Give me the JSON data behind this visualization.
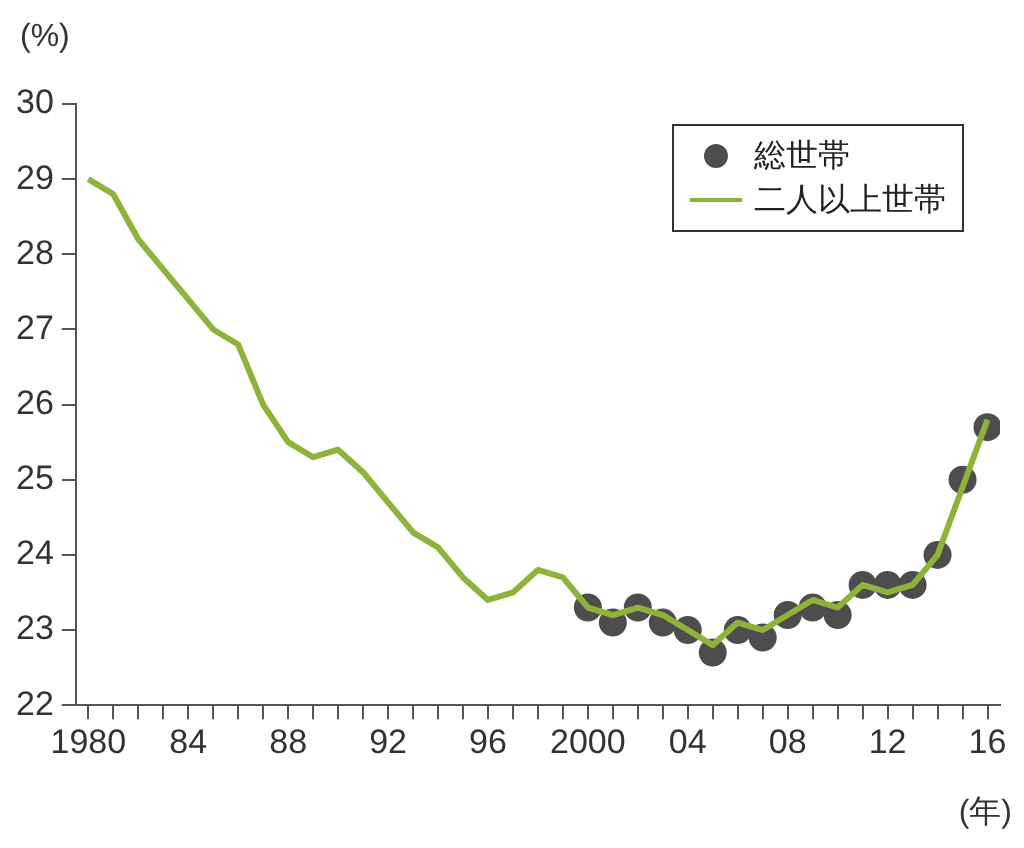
{
  "chart_data": {
    "type": "line",
    "ylabel": "(%)",
    "xlabel": "(年)",
    "xlim": [
      1979.5,
      2016.5
    ],
    "xticks": [
      {
        "value": 1980,
        "label": "1980"
      },
      {
        "value": 1981,
        "label": null
      },
      {
        "value": 1982,
        "label": null
      },
      {
        "value": 1983,
        "label": null
      },
      {
        "value": 1984,
        "label": "84"
      },
      {
        "value": 1985,
        "label": null
      },
      {
        "value": 1986,
        "label": null
      },
      {
        "value": 1987,
        "label": null
      },
      {
        "value": 1988,
        "label": "88"
      },
      {
        "value": 1989,
        "label": null
      },
      {
        "value": 1990,
        "label": null
      },
      {
        "value": 1991,
        "label": null
      },
      {
        "value": 1992,
        "label": "92"
      },
      {
        "value": 1993,
        "label": null
      },
      {
        "value": 1994,
        "label": null
      },
      {
        "value": 1995,
        "label": null
      },
      {
        "value": 1996,
        "label": "96"
      },
      {
        "value": 1997,
        "label": null
      },
      {
        "value": 1998,
        "label": null
      },
      {
        "value": 1999,
        "label": null
      },
      {
        "value": 2000,
        "label": "2000"
      },
      {
        "value": 2001,
        "label": null
      },
      {
        "value": 2002,
        "label": null
      },
      {
        "value": 2003,
        "label": null
      },
      {
        "value": 2004,
        "label": "04"
      },
      {
        "value": 2005,
        "label": null
      },
      {
        "value": 2006,
        "label": null
      },
      {
        "value": 2007,
        "label": null
      },
      {
        "value": 2008,
        "label": "08"
      },
      {
        "value": 2009,
        "label": null
      },
      {
        "value": 2010,
        "label": null
      },
      {
        "value": 2011,
        "label": null
      },
      {
        "value": 2012,
        "label": "12"
      },
      {
        "value": 2013,
        "label": null
      },
      {
        "value": 2014,
        "label": null
      },
      {
        "value": 2015,
        "label": null
      },
      {
        "value": 2016,
        "label": "16"
      }
    ],
    "ylim": [
      22,
      30
    ],
    "yticks": [
      22,
      23,
      24,
      25,
      26,
      27,
      28,
      29,
      30
    ],
    "grid": false,
    "legend": "top right",
    "series": [
      {
        "name": "総世帯",
        "type": "scatter",
        "color": "#4d4d4d",
        "marker": "circle",
        "x": [
          2000,
          2001,
          2002,
          2003,
          2004,
          2005,
          2006,
          2007,
          2008,
          2009,
          2010,
          2011,
          2012,
          2013,
          2014,
          2015,
          2016
        ],
        "values": [
          23.3,
          23.1,
          23.3,
          23.1,
          23.0,
          22.7,
          23.0,
          22.9,
          23.2,
          23.3,
          23.2,
          23.6,
          23.6,
          23.6,
          24.0,
          25.0,
          25.7
        ]
      },
      {
        "name": "二人以上世帯",
        "color": "#8db33a",
        "marker": "none",
        "x": [
          1980,
          1981,
          1982,
          1983,
          1984,
          1985,
          1986,
          1987,
          1988,
          1989,
          1990,
          1991,
          1992,
          1993,
          1994,
          1995,
          1996,
          1997,
          1998,
          1999,
          2000,
          2001,
          2002,
          2003,
          2004,
          2005,
          2006,
          2007,
          2008,
          2009,
          2010,
          2011,
          2012,
          2013,
          2014,
          2015,
          2016
        ],
        "values": [
          29.0,
          28.8,
          28.2,
          27.8,
          27.4,
          27.0,
          26.8,
          26.0,
          25.5,
          25.3,
          25.4,
          25.1,
          24.7,
          24.3,
          24.1,
          23.7,
          23.4,
          23.5,
          23.8,
          23.7,
          23.3,
          23.2,
          23.3,
          23.2,
          23.0,
          22.8,
          23.1,
          23.0,
          23.2,
          23.4,
          23.3,
          23.6,
          23.5,
          23.6,
          24.0,
          24.9,
          25.8
        ]
      }
    ]
  }
}
